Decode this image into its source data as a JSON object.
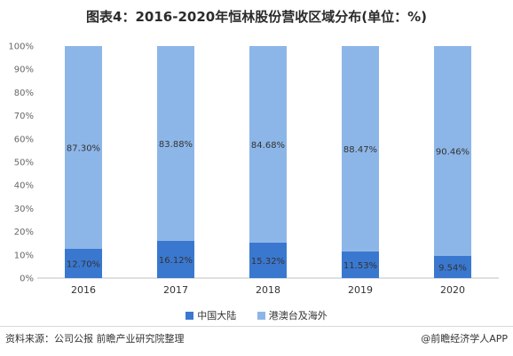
{
  "chart_data": {
    "type": "bar",
    "stacked": true,
    "title": "图表4：2016-2020年恒林股份营收区域分布(单位：%)",
    "categories": [
      "2016",
      "2017",
      "2018",
      "2019",
      "2020"
    ],
    "series": [
      {
        "name": "中国大陆",
        "values": [
          12.7,
          16.12,
          15.32,
          11.53,
          9.54
        ],
        "labels": [
          "12.70%",
          "16.12%",
          "15.32%",
          "11.53%",
          "9.54%"
        ],
        "color": "#3a78d0"
      },
      {
        "name": "港澳台及海外",
        "values": [
          87.3,
          83.88,
          84.68,
          88.47,
          90.46
        ],
        "labels": [
          "87.30%",
          "83.88%",
          "84.68%",
          "88.47%",
          "90.46%"
        ],
        "color": "#8db6e8"
      }
    ],
    "ylim": [
      0,
      100
    ],
    "yticks": [
      "0%",
      "10%",
      "20%",
      "30%",
      "40%",
      "50%",
      "60%",
      "70%",
      "80%",
      "90%",
      "100%"
    ],
    "legend_position": "bottom"
  },
  "footer": {
    "source": "资料来源：公司公报 前瞻产业研究院整理",
    "brand": "@前瞻经济学人APP"
  }
}
